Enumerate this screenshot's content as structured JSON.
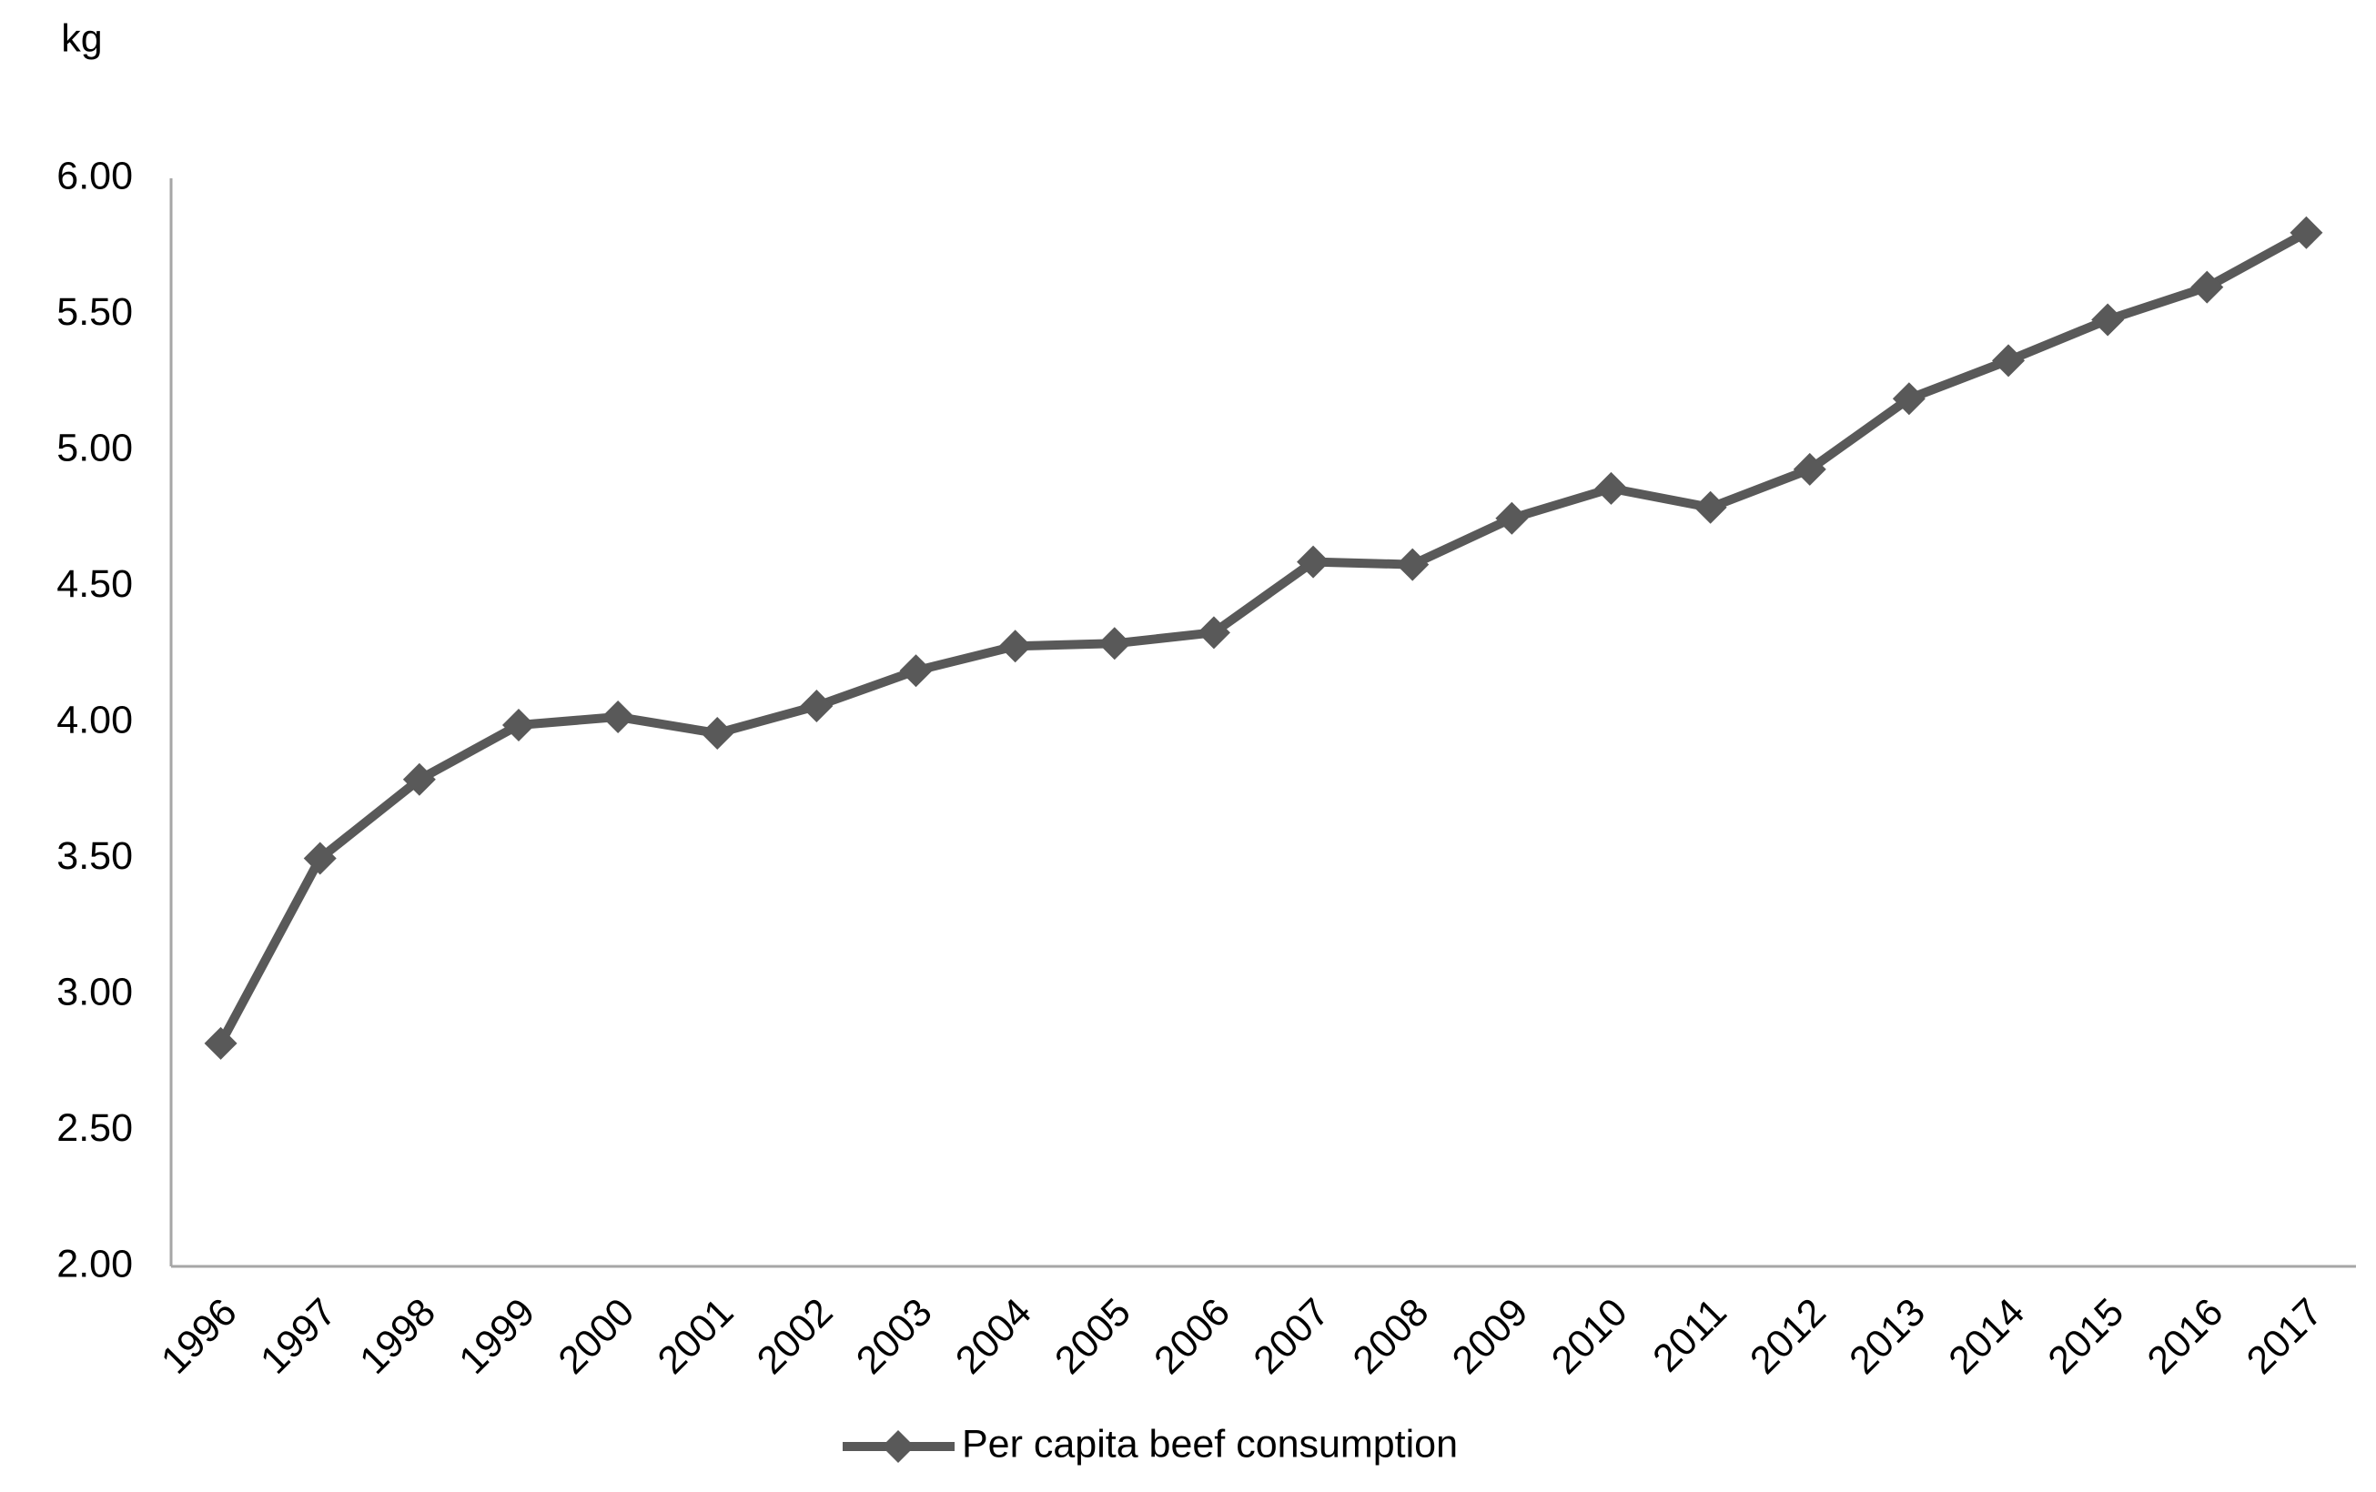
{
  "chart_data": {
    "type": "line",
    "y_label": "kg",
    "categories": [
      "1996",
      "1997",
      "1998",
      "1999",
      "2000",
      "2001",
      "2002",
      "2003",
      "2004",
      "2005",
      "2006",
      "2007",
      "2008",
      "2009",
      "2010",
      "2011",
      "2012",
      "2013",
      "2014",
      "2015",
      "2016",
      "2017"
    ],
    "series": [
      {
        "name": "Per capita beef consumption",
        "color": "#595959",
        "values": [
          2.82,
          3.5,
          3.79,
          3.99,
          4.02,
          3.96,
          4.06,
          4.19,
          4.28,
          4.29,
          4.33,
          4.59,
          4.58,
          4.75,
          4.86,
          4.79,
          4.93,
          5.19,
          5.33,
          5.48,
          5.6,
          5.8
        ]
      }
    ],
    "ylim": [
      2,
      6
    ],
    "yticks": [
      {
        "value": 2,
        "label": "2.00"
      },
      {
        "value": 2.5,
        "label": "2.50"
      },
      {
        "value": 3,
        "label": "3.00"
      },
      {
        "value": 3.5,
        "label": "3.50"
      },
      {
        "value": 4,
        "label": "4.00"
      },
      {
        "value": 4.5,
        "label": "4.50"
      },
      {
        "value": 5,
        "label": "5.00"
      },
      {
        "value": 5.5,
        "label": "5.50"
      },
      {
        "value": 6,
        "label": "6.00"
      }
    ],
    "grid": false,
    "legend": "bottom"
  }
}
